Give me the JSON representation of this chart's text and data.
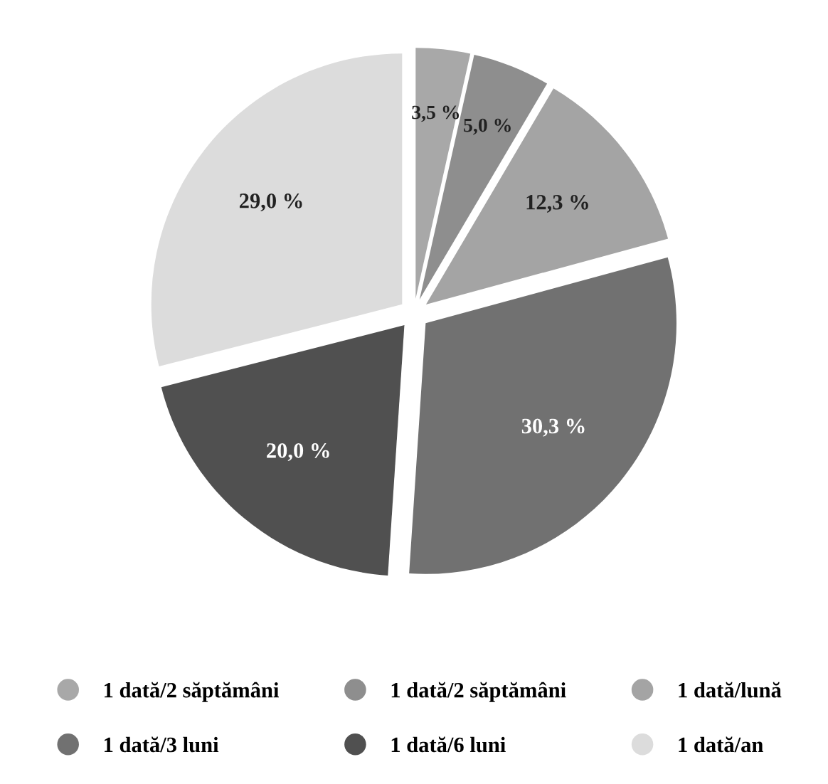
{
  "chart_data": {
    "type": "pie",
    "categories": [
      "1 dată/2 săptămâni",
      "1 dată/2 săptămâni",
      "1 dată/lună",
      "1 dată/3 luni",
      "1 dată/6 luni",
      "1 dată/an"
    ],
    "values": [
      3.5,
      5.0,
      12.3,
      30.3,
      20.0,
      29.0
    ],
    "value_labels": [
      "3,5 %",
      "5,0 %",
      "12,3 %",
      "30,3 %",
      "20,0 %",
      "29,0 %"
    ],
    "colors": [
      "#a8a8a8",
      "#8e8e8e",
      "#a4a4a4",
      "#717171",
      "#505050",
      "#dcdcdc"
    ],
    "legend": "bottom"
  }
}
